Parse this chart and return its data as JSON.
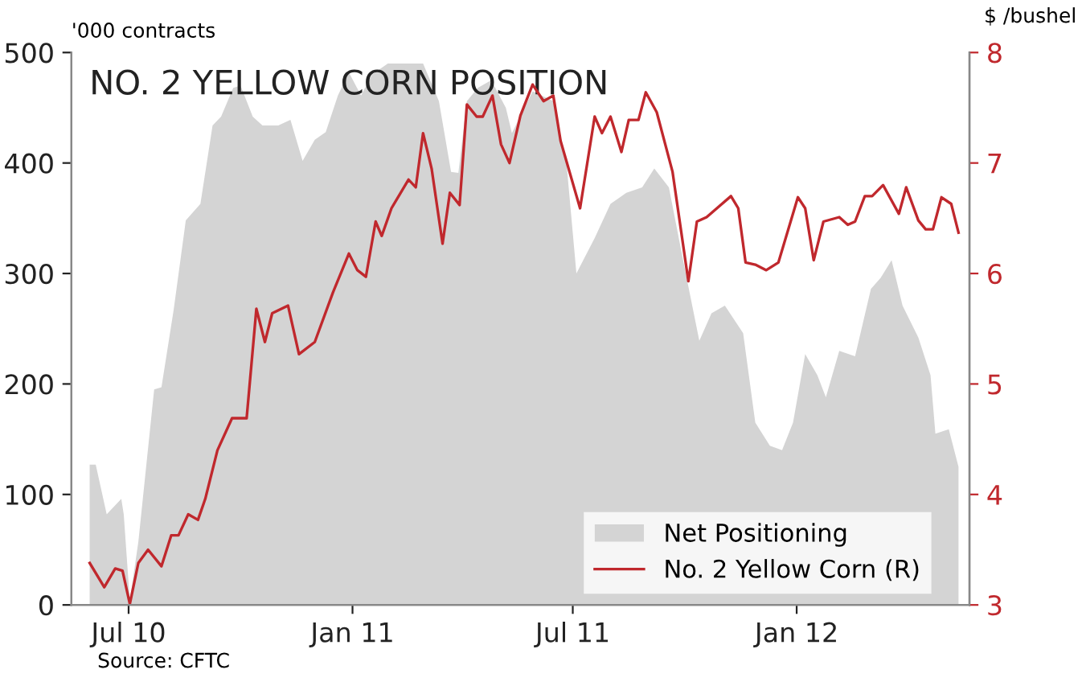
{
  "chart_data": {
    "type": "area",
    "title": "NO. 2 YELLOW CORN POSITION",
    "ylabel": "'000 contracts",
    "y2label": "$ /bushel",
    "annotations": [
      "Source: CFTC"
    ],
    "xlim": [
      "2010-05-15",
      "2012-05-22"
    ],
    "xticks": [
      {
        "value": "2010-07-01",
        "label": "Jul 10"
      },
      {
        "value": "2011-01-01",
        "label": "Jan 11"
      },
      {
        "value": "2011-07-01",
        "label": "Jul 11"
      },
      {
        "value": "2012-01-01",
        "label": "Jan 12"
      }
    ],
    "ylim": [
      0,
      500
    ],
    "yticks": [
      0,
      100,
      200,
      300,
      400,
      500
    ],
    "y2lim": [
      3,
      8
    ],
    "y2ticks": [
      3,
      4,
      5,
      6,
      7,
      8
    ],
    "legend": "bottom right",
    "series": [
      {
        "name": "Net Positioning",
        "color": "#d4d4d4",
        "x": [
          "2010-05-30",
          "2010-06-04",
          "2010-06-13",
          "2010-06-25",
          "2010-06-27",
          "2010-07-02",
          "2010-07-09",
          "2010-07-22",
          "2010-07-28",
          "2010-08-07",
          "2010-08-17",
          "2010-08-29",
          "2010-09-08",
          "2010-09-15",
          "2010-09-25",
          "2010-10-01",
          "2010-10-11",
          "2010-10-19",
          "2010-11-01",
          "2010-11-11",
          "2010-11-21",
          "2010-12-01",
          "2010-12-10",
          "2010-12-20",
          "2010-12-29",
          "2011-01-08",
          "2011-01-17",
          "2011-01-30",
          "2011-02-28",
          "2011-03-13",
          "2011-03-23",
          "2011-03-29",
          "2011-04-05",
          "2011-04-14",
          "2011-04-25",
          "2011-05-07",
          "2011-05-12",
          "2011-05-29",
          "2011-06-15",
          "2011-06-26",
          "2011-07-04",
          "2011-07-19",
          "2011-08-01",
          "2011-08-14",
          "2011-08-27",
          "2011-09-06",
          "2011-09-18",
          "2011-09-30",
          "2011-10-13",
          "2011-10-23",
          "2011-11-03",
          "2011-11-18",
          "2011-11-28",
          "2011-12-10",
          "2011-12-20",
          "2011-12-29",
          "2012-01-08",
          "2012-01-18",
          "2012-01-25",
          "2012-02-05",
          "2012-02-18",
          "2012-03-02",
          "2012-03-10",
          "2012-03-19",
          "2012-03-28",
          "2012-04-10",
          "2012-04-20",
          "2012-04-24",
          "2012-05-05",
          "2012-05-13"
        ],
        "values": [
          127,
          127,
          82,
          96,
          82,
          4,
          57,
          195,
          197,
          267,
          348,
          363,
          434,
          442,
          468,
          470,
          442,
          434,
          434,
          439,
          402,
          421,
          428,
          461,
          482,
          461,
          480,
          490,
          490,
          456,
          392,
          391,
          456,
          468,
          475,
          450,
          427,
          465,
          456,
          398,
          300,
          332,
          363,
          373,
          378,
          395,
          378,
          310,
          239,
          264,
          271,
          246,
          165,
          144,
          140,
          165,
          227,
          208,
          188,
          230,
          225,
          286,
          296,
          312,
          271,
          242,
          208,
          155,
          159,
          125
        ]
      },
      {
        "name": "No. 2 Yellow Corn (R)",
        "type": "line",
        "axis": "y2",
        "color": "#c0282d",
        "x": [
          "2010-05-30",
          "2010-06-11",
          "2010-06-20",
          "2010-06-26",
          "2010-07-02",
          "2010-07-09",
          "2010-07-17",
          "2010-07-28",
          "2010-08-05",
          "2010-08-11",
          "2010-08-19",
          "2010-08-27",
          "2010-09-02",
          "2010-09-12",
          "2010-09-24",
          "2010-10-06",
          "2010-10-14",
          "2010-10-21",
          "2010-10-27",
          "2010-11-09",
          "2010-11-18",
          "2010-12-01",
          "2010-12-16",
          "2010-12-29",
          "2011-01-05",
          "2011-01-12",
          "2011-01-20",
          "2011-01-25",
          "2011-02-02",
          "2011-02-16",
          "2011-02-22",
          "2011-02-28",
          "2011-03-07",
          "2011-03-16",
          "2011-03-22",
          "2011-03-30",
          "2011-04-05",
          "2011-04-13",
          "2011-04-18",
          "2011-04-26",
          "2011-05-03",
          "2011-05-10",
          "2011-05-19",
          "2011-05-29",
          "2011-06-07",
          "2011-06-15",
          "2011-06-21",
          "2011-07-07",
          "2011-07-19",
          "2011-07-25",
          "2011-08-01",
          "2011-08-10",
          "2011-08-16",
          "2011-08-24",
          "2011-08-30",
          "2011-09-08",
          "2011-09-21",
          "2011-10-04",
          "2011-10-11",
          "2011-10-19",
          "2011-11-08",
          "2011-11-14",
          "2011-11-20",
          "2011-11-28",
          "2011-12-07",
          "2011-12-17",
          "2012-01-02",
          "2012-01-08",
          "2012-01-15",
          "2012-01-23",
          "2012-02-05",
          "2012-02-12",
          "2012-02-18",
          "2012-02-26",
          "2012-03-03",
          "2012-03-12",
          "2012-03-25",
          "2012-03-31",
          "2012-04-10",
          "2012-04-16",
          "2012-04-22",
          "2012-04-29",
          "2012-05-07",
          "2012-05-13"
        ],
        "values": [
          3.38,
          3.16,
          3.33,
          3.31,
          3.01,
          3.38,
          3.5,
          3.35,
          3.63,
          3.63,
          3.82,
          3.77,
          3.96,
          4.4,
          4.69,
          4.69,
          5.68,
          5.38,
          5.64,
          5.71,
          5.27,
          5.38,
          5.83,
          6.18,
          6.03,
          5.97,
          6.47,
          6.34,
          6.59,
          6.85,
          6.78,
          7.27,
          6.95,
          6.27,
          6.73,
          6.62,
          7.53,
          7.42,
          7.42,
          7.61,
          7.17,
          7.0,
          7.43,
          7.71,
          7.56,
          7.61,
          7.2,
          6.59,
          7.42,
          7.27,
          7.42,
          7.1,
          7.39,
          7.39,
          7.64,
          7.46,
          6.92,
          5.93,
          6.47,
          6.51,
          6.7,
          6.59,
          6.1,
          6.08,
          6.03,
          6.1,
          6.69,
          6.59,
          6.12,
          6.47,
          6.51,
          6.44,
          6.47,
          6.7,
          6.7,
          6.8,
          6.54,
          6.78,
          6.48,
          6.4,
          6.4,
          6.69,
          6.63,
          6.37
        ]
      }
    ]
  }
}
